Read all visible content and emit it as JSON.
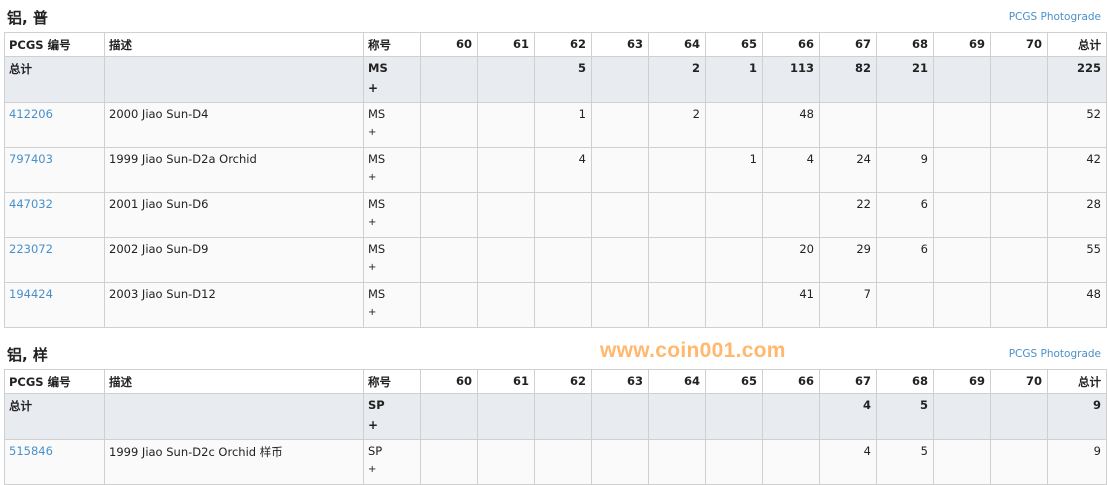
{
  "columns": {
    "pcgs": "PCGS 编号",
    "desc": "描述",
    "designation": "称号",
    "grades": [
      "60",
      "61",
      "62",
      "63",
      "64",
      "65",
      "66",
      "67",
      "68",
      "69",
      "70"
    ],
    "total": "总计"
  },
  "sections": [
    {
      "title": "铝, 普",
      "photograde_link": "PCGS Photograde",
      "total_row": {
        "label": "总计",
        "designation": "MS",
        "plus": "+",
        "values": [
          "",
          "",
          "5",
          "",
          "2",
          "1",
          "113",
          "82",
          "21",
          "",
          ""
        ],
        "total": "225"
      },
      "rows": [
        {
          "pcgs": "412206",
          "desc": "2000 Jiao Sun-D4",
          "designation": "MS",
          "plus": "+",
          "values": [
            "",
            "",
            "1",
            "",
            "2",
            "",
            "48",
            "",
            "",
            "",
            ""
          ],
          "total": "52"
        },
        {
          "pcgs": "797403",
          "desc": "1999 Jiao Sun-D2a Orchid",
          "designation": "MS",
          "plus": "+",
          "values": [
            "",
            "",
            "4",
            "",
            "",
            "1",
            "4",
            "24",
            "9",
            "",
            ""
          ],
          "total": "42"
        },
        {
          "pcgs": "447032",
          "desc": "2001 Jiao Sun-D6",
          "designation": "MS",
          "plus": "+",
          "values": [
            "",
            "",
            "",
            "",
            "",
            "",
            "",
            "22",
            "6",
            "",
            ""
          ],
          "total": "28"
        },
        {
          "pcgs": "223072",
          "desc": "2002 Jiao Sun-D9",
          "designation": "MS",
          "plus": "+",
          "values": [
            "",
            "",
            "",
            "",
            "",
            "",
            "20",
            "29",
            "6",
            "",
            ""
          ],
          "total": "55"
        },
        {
          "pcgs": "194424",
          "desc": "2003 Jiao Sun-D12",
          "designation": "MS",
          "plus": "+",
          "values": [
            "",
            "",
            "",
            "",
            "",
            "",
            "41",
            "7",
            "",
            "",
            ""
          ],
          "total": "48"
        }
      ]
    },
    {
      "title": "铝, 样",
      "photograde_link": "PCGS Photograde",
      "total_row": {
        "label": "总计",
        "designation": "SP",
        "plus": "+",
        "values": [
          "",
          "",
          "",
          "",
          "",
          "",
          "",
          "4",
          "5",
          "",
          ""
        ],
        "total": "9"
      },
      "rows": [
        {
          "pcgs": "515846",
          "desc": "1999 Jiao Sun-D2c Orchid 样币",
          "designation": "SP",
          "plus": "+",
          "values": [
            "",
            "",
            "",
            "",
            "",
            "",
            "",
            "4",
            "5",
            "",
            ""
          ],
          "total": "9"
        }
      ]
    }
  ],
  "watermark": "www.coin001.com",
  "colors": {
    "link": "#4a90c8",
    "total_row_bg": "#e8ecf0",
    "watermark": "#ffa03c"
  }
}
